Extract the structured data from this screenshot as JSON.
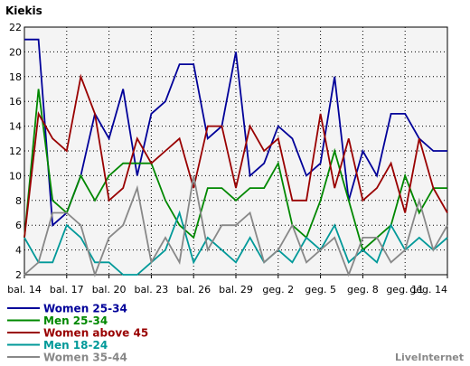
{
  "chart_data": {
    "type": "line",
    "title": "Kiekis",
    "xlabel": "",
    "ylabel": "",
    "ylim": [
      2,
      22
    ],
    "yticks": [
      2,
      4,
      6,
      8,
      10,
      12,
      14,
      16,
      18,
      20,
      22
    ],
    "grid": true,
    "legend_position": "bottom-left",
    "x": [
      "bal. 14",
      "bal. 15",
      "bal. 16",
      "bal. 17",
      "bal. 18",
      "bal. 19",
      "bal. 20",
      "bal. 21",
      "bal. 22",
      "bal. 23",
      "bal. 24",
      "bal. 25",
      "bal. 26",
      "bal. 27",
      "bal. 28",
      "bal. 29",
      "bal. 30",
      "geg. 1",
      "geg. 2",
      "geg. 3",
      "geg. 4",
      "geg. 5",
      "geg. 6",
      "geg. 7",
      "geg. 8",
      "geg. 9",
      "geg. 10",
      "geg. 11",
      "geg. 12",
      "geg. 13",
      "geg. 14"
    ],
    "xtick_labels": [
      "bal. 14",
      "bal. 17",
      "bal. 20",
      "bal. 23",
      "bal. 26",
      "bal. 29",
      "geg. 2",
      "geg. 5",
      "geg. 8",
      "geg. 11",
      "geg. 14"
    ],
    "series": [
      {
        "name": "Women 25-34",
        "color": "#000099",
        "values": [
          21,
          21,
          6,
          7,
          10,
          15,
          13,
          17,
          10,
          15,
          16,
          19,
          19,
          13,
          14,
          20,
          10,
          11,
          14,
          13,
          10,
          11,
          18,
          8,
          12,
          10,
          15,
          15,
          13,
          12,
          12
        ]
      },
      {
        "name": "Men 25-34",
        "color": "#008800",
        "values": [
          5,
          17,
          8,
          7,
          10,
          8,
          10,
          11,
          11,
          11,
          8,
          6,
          5,
          9,
          9,
          8,
          9,
          9,
          11,
          6,
          5,
          8,
          12,
          8,
          4,
          5,
          6,
          10,
          7,
          9,
          9
        ]
      },
      {
        "name": "Women above 45",
        "color": "#990000",
        "values": [
          5,
          15,
          13,
          12,
          18,
          15,
          8,
          9,
          13,
          11,
          12,
          13,
          9,
          14,
          14,
          9,
          14,
          12,
          13,
          8,
          8,
          15,
          9,
          13,
          8,
          9,
          11,
          7,
          13,
          9,
          7
        ]
      },
      {
        "name": "Men 18-24",
        "color": "#009999",
        "values": [
          5,
          3,
          3,
          6,
          5,
          3,
          3,
          2,
          2,
          3,
          4,
          7,
          3,
          5,
          4,
          3,
          5,
          3,
          4,
          3,
          5,
          4,
          6,
          3,
          4,
          3,
          6,
          4,
          5,
          4,
          5
        ]
      },
      {
        "name": "Women 35-44",
        "color": "#888888",
        "values": [
          2,
          3,
          7,
          7,
          6,
          2,
          5,
          6,
          9,
          3,
          5,
          3,
          10,
          4,
          6,
          6,
          7,
          3,
          4,
          6,
          3,
          4,
          5,
          2,
          5,
          5,
          3,
          4,
          8,
          4,
          6
        ]
      }
    ]
  },
  "brand": "LiveInternet"
}
